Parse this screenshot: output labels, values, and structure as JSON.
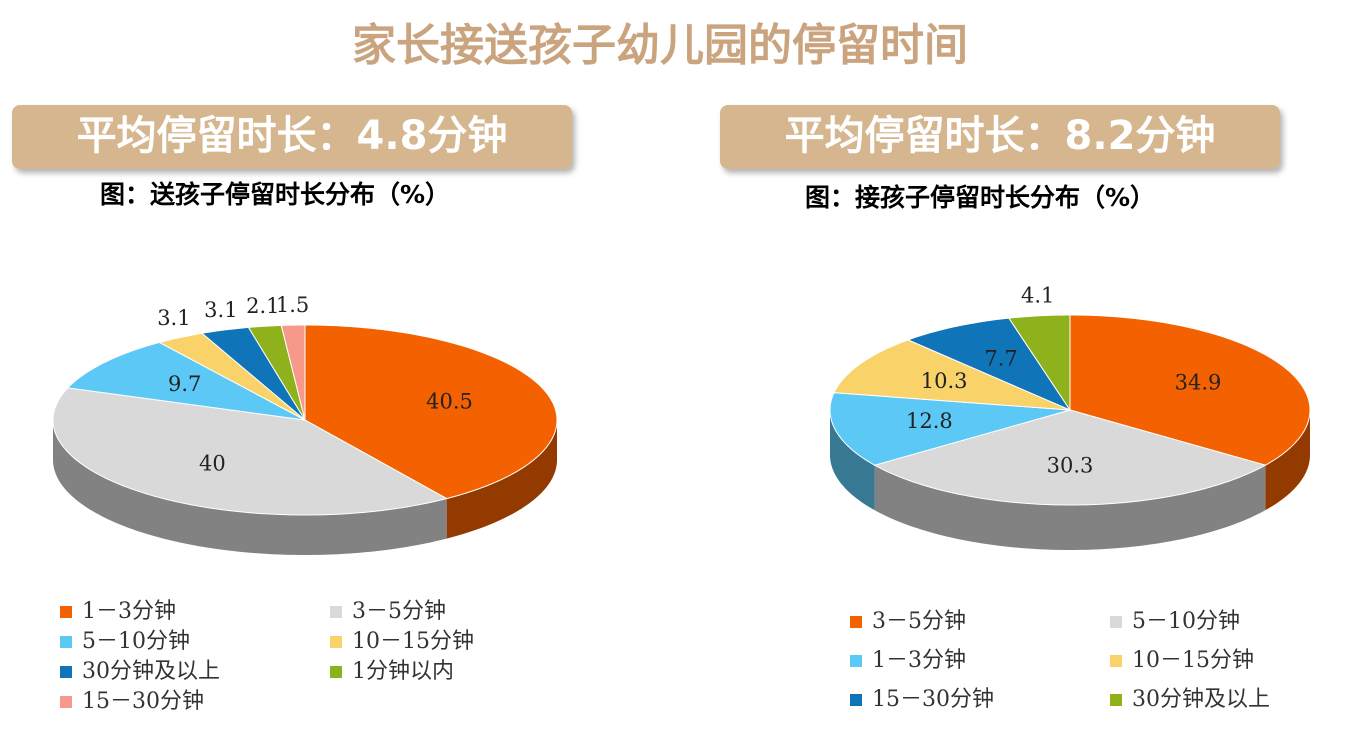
{
  "title": "家长接送孩子幼儿园的停留时间",
  "chart_data": [
    {
      "type": "pie",
      "banner": "平均停留时长：4.8分钟",
      "title": "图：送孩子停留时长分布（%）",
      "categories": [
        "1－3分钟",
        "3－5分钟",
        "5－10分钟",
        "10－15分钟",
        "30分钟及以上",
        "1分钟以内",
        "15－30分钟"
      ],
      "values": [
        40.5,
        40,
        9.7,
        3.1,
        3.1,
        2.1,
        1.5
      ],
      "colors": [
        "#f46100",
        "#d9d9d9",
        "#5bc8f5",
        "#f9d36a",
        "#0f74b8",
        "#8fb21c",
        "#f7998a"
      ]
    },
    {
      "type": "pie",
      "banner": "平均停留时长：8.2分钟",
      "title": "图：接孩子停留时长分布（%）",
      "categories": [
        "3－5分钟",
        "5－10分钟",
        "1－3分钟",
        "10－15分钟",
        "15－30分钟",
        "30分钟及以上"
      ],
      "values": [
        34.9,
        30.3,
        12.8,
        10.3,
        7.7,
        4.1
      ],
      "colors": [
        "#f46100",
        "#d9d9d9",
        "#5bc8f5",
        "#f9d36a",
        "#0f74b8",
        "#8fb21c"
      ]
    }
  ]
}
